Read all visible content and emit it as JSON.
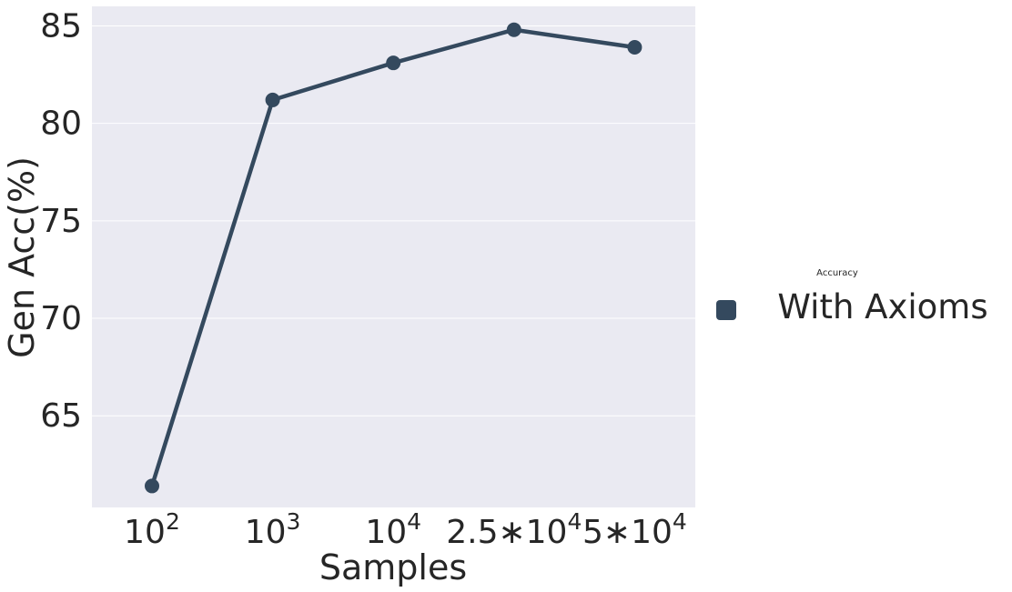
{
  "chart_data": {
    "type": "line",
    "xlabel": "Samples",
    "ylabel": "Gen Acc(%)",
    "x_scale": "categorical",
    "categories": [
      {
        "base": "10",
        "exp": "2"
      },
      {
        "base": "10",
        "exp": "3"
      },
      {
        "base": "10",
        "exp": "4"
      },
      {
        "base": "2.5∗10",
        "exp": "4"
      },
      {
        "base": "5∗10",
        "exp": "4"
      }
    ],
    "series": [
      {
        "name": "With Axioms",
        "values": [
          61.4,
          81.2,
          83.1,
          84.8,
          83.9
        ],
        "color": "#34495e"
      }
    ],
    "yticks": [
      65,
      70,
      75,
      80,
      85
    ],
    "ylim": [
      60.3,
      86.0
    ],
    "grid": true,
    "background": "#eaeaf2",
    "legend": {
      "title": "Accuracy",
      "placement": "outside-right"
    }
  }
}
